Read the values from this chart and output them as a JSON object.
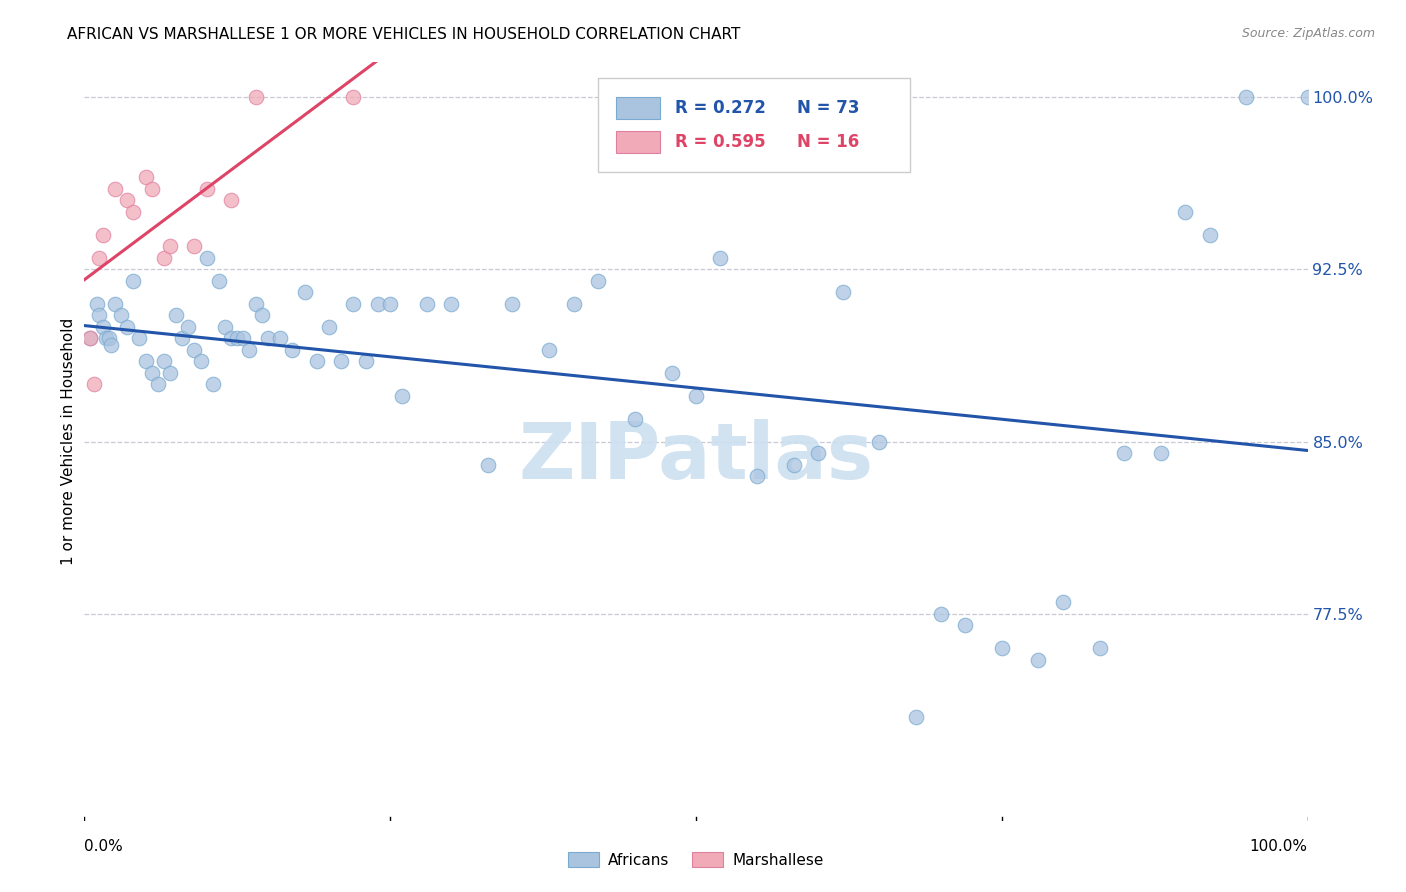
{
  "title": "AFRICAN VS MARSHALLESE 1 OR MORE VEHICLES IN HOUSEHOLD CORRELATION CHART",
  "source": "Source: ZipAtlas.com",
  "ylabel": "1 or more Vehicles in Household",
  "ytick_labels": [
    "100.0%",
    "92.5%",
    "85.0%",
    "77.5%"
  ],
  "ytick_values": [
    1.0,
    0.925,
    0.85,
    0.775
  ],
  "xlim": [
    0.0,
    1.0
  ],
  "ylim": [
    0.685,
    1.015
  ],
  "blue_color": "#aac4e0",
  "blue_edge": "#7aaad0",
  "pink_color": "#f0aab8",
  "pink_edge": "#e080a0",
  "trendline_blue": "#2255aa",
  "trendline_pink": "#dd4466",
  "ytick_color": "#2255aa",
  "watermark_color": "#ccdff0",
  "africans_x": [
    0.005,
    0.01,
    0.012,
    0.015,
    0.018,
    0.02,
    0.022,
    0.025,
    0.03,
    0.035,
    0.04,
    0.045,
    0.05,
    0.055,
    0.06,
    0.065,
    0.07,
    0.075,
    0.08,
    0.085,
    0.09,
    0.095,
    0.1,
    0.105,
    0.11,
    0.115,
    0.12,
    0.125,
    0.13,
    0.135,
    0.14,
    0.145,
    0.15,
    0.16,
    0.17,
    0.18,
    0.19,
    0.2,
    0.21,
    0.22,
    0.23,
    0.24,
    0.25,
    0.26,
    0.28,
    0.3,
    0.33,
    0.35,
    0.38,
    0.4,
    0.42,
    0.45,
    0.48,
    0.5,
    0.52,
    0.55,
    0.58,
    0.6,
    0.62,
    0.65,
    0.68,
    0.7,
    0.72,
    0.75,
    0.78,
    0.8,
    0.83,
    0.85,
    0.88,
    0.9,
    0.92,
    0.95,
    1.0
  ],
  "africans_y": [
    0.895,
    0.91,
    0.905,
    0.9,
    0.895,
    0.895,
    0.892,
    0.91,
    0.905,
    0.9,
    0.92,
    0.895,
    0.885,
    0.88,
    0.875,
    0.885,
    0.88,
    0.905,
    0.895,
    0.9,
    0.89,
    0.885,
    0.93,
    0.875,
    0.92,
    0.9,
    0.895,
    0.895,
    0.895,
    0.89,
    0.91,
    0.905,
    0.895,
    0.895,
    0.89,
    0.915,
    0.885,
    0.9,
    0.885,
    0.91,
    0.885,
    0.91,
    0.91,
    0.87,
    0.91,
    0.91,
    0.84,
    0.91,
    0.89,
    0.91,
    0.92,
    0.86,
    0.88,
    0.87,
    0.93,
    0.835,
    0.84,
    0.845,
    0.915,
    0.85,
    0.73,
    0.775,
    0.77,
    0.76,
    0.755,
    0.78,
    0.76,
    0.845,
    0.845,
    0.95,
    0.94,
    1.0,
    1.0
  ],
  "marshallese_x": [
    0.005,
    0.008,
    0.012,
    0.015,
    0.025,
    0.035,
    0.04,
    0.05,
    0.055,
    0.065,
    0.07,
    0.09,
    0.1,
    0.12,
    0.14,
    0.22
  ],
  "marshallese_y": [
    0.895,
    0.875,
    0.93,
    0.94,
    0.96,
    0.955,
    0.95,
    0.965,
    0.96,
    0.93,
    0.935,
    0.935,
    0.96,
    0.955,
    1.0,
    1.0
  ]
}
